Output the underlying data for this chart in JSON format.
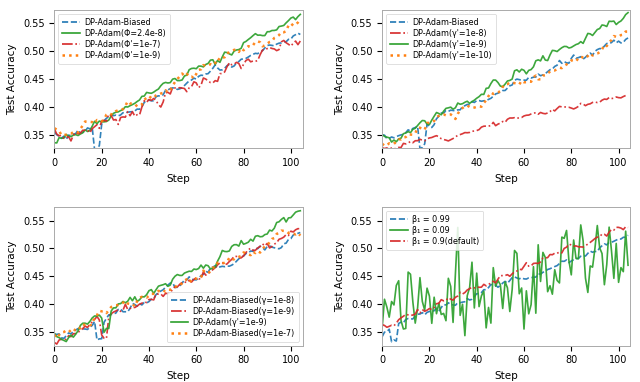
{
  "n_steps": 105,
  "xlim": [
    0,
    105
  ],
  "ylim": [
    0.325,
    0.575
  ],
  "xticks": [
    0,
    20,
    40,
    60,
    80,
    100
  ],
  "yticks": [
    0.35,
    0.4,
    0.45,
    0.5,
    0.55
  ],
  "xlabel": "Step",
  "ylabel": "Test Accuracy",
  "subplot1": {
    "legend_loc": "upper left",
    "legend": [
      {
        "label": "DP-Adam-Biased",
        "color": "#1f77b4",
        "ls": "--",
        "lw": 1.2
      },
      {
        "label": "DP-Adam(Φ=2.4e-8)",
        "color": "#2ca02c",
        "ls": "-",
        "lw": 1.2
      },
      {
        "label": "DP-Adam(Φ'=1e-7)",
        "color": "#d62728",
        "ls": "-.",
        "lw": 1.2
      },
      {
        "label": "DP-Adam(Φ'=1e-9)",
        "color": "#ff7f0e",
        "ls": ":",
        "lw": 1.8
      }
    ]
  },
  "subplot2": {
    "legend_loc": "upper left",
    "legend": [
      {
        "label": "DP-Adam-Biased",
        "color": "#1f77b4",
        "ls": "--",
        "lw": 1.2
      },
      {
        "label": "DP-Adam(γ'=1e-8)",
        "color": "#d62728",
        "ls": "-.",
        "lw": 1.2
      },
      {
        "label": "DP-Adam(γ'=1e-9)",
        "color": "#2ca02c",
        "ls": "-",
        "lw": 1.2
      },
      {
        "label": "DP-Adam(γ'=1e-10)",
        "color": "#ff7f0e",
        "ls": ":",
        "lw": 1.8
      }
    ]
  },
  "subplot3": {
    "legend_loc": "lower right",
    "legend": [
      {
        "label": "DP-Adam-Biased(γ=1e-8)",
        "color": "#1f77b4",
        "ls": "--",
        "lw": 1.2
      },
      {
        "label": "DP-Adam-Biased(γ=1e-9)",
        "color": "#d62728",
        "ls": "-.",
        "lw": 1.2
      },
      {
        "label": "DP-Adam(γ'=1e-9)",
        "color": "#2ca02c",
        "ls": "-",
        "lw": 1.2
      },
      {
        "label": "DP-Adam-Biased(γ=1e-7)",
        "color": "#ff7f0e",
        "ls": ":",
        "lw": 1.8
      }
    ]
  },
  "subplot4": {
    "legend_loc": "upper left",
    "legend": [
      {
        "label": "β₁ = 0.99",
        "color": "#1f77b4",
        "ls": "--",
        "lw": 1.2
      },
      {
        "label": "β₁ = 0.09",
        "color": "#2ca02c",
        "ls": "-",
        "lw": 1.2
      },
      {
        "label": "β₁ = 0.9(default)",
        "color": "#d62728",
        "ls": "-.",
        "lw": 1.2
      }
    ]
  }
}
